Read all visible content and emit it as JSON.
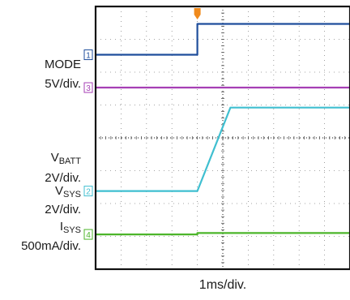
{
  "chart_data": {
    "type": "line",
    "x_unit": "div",
    "xlim": [
      0,
      10
    ],
    "ylim": [
      0,
      8
    ],
    "xlabel": "1ms/div.",
    "series": [
      {
        "marker": "1",
        "color": "#1f4e9c",
        "label_lines": [
          {
            "text": "MODE",
            "sub": ""
          },
          {
            "text": "5V/div.",
            "sub": ""
          }
        ],
        "x": [
          0,
          4.0,
          4.0,
          10
        ],
        "y": [
          6.53,
          6.53,
          7.47,
          7.47
        ]
      },
      {
        "marker": "3",
        "color": "#a63fb5",
        "label_lines": [
          {
            "text": "V",
            "sub": "BATT"
          },
          {
            "text": "2V/div.",
            "sub": ""
          }
        ],
        "x": [
          0,
          10
        ],
        "y": [
          5.53,
          5.53
        ]
      },
      {
        "marker": "2",
        "color": "#3fbfd0",
        "label_lines": [
          {
            "text": "V",
            "sub": "SYS"
          },
          {
            "text": "2V/div.",
            "sub": ""
          }
        ],
        "x": [
          0,
          4.0,
          5.3,
          10
        ],
        "y": [
          2.38,
          2.38,
          4.92,
          4.92
        ]
      },
      {
        "marker": "4",
        "color": "#4cb52a",
        "label_lines": [
          {
            "text": "I",
            "sub": "SYS"
          },
          {
            "text": "500mA/div.",
            "sub": ""
          }
        ],
        "x": [
          0,
          4.0,
          4.0,
          10
        ],
        "y": [
          1.06,
          1.06,
          1.1,
          1.1
        ]
      }
    ],
    "trigger": {
      "x": 4.0,
      "color": "#f08a1c"
    },
    "grid": true
  }
}
